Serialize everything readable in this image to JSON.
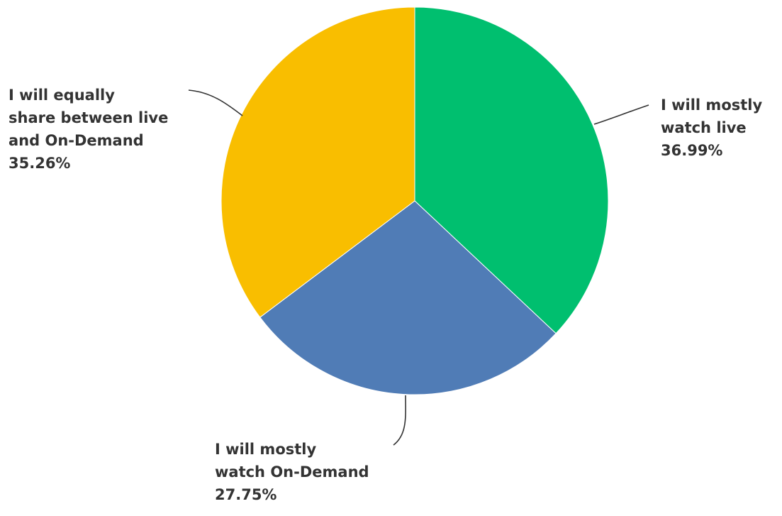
{
  "chart_data": {
    "type": "pie",
    "slices": [
      {
        "label_lines": [
          "I will mostly",
          "watch live"
        ],
        "value": 36.99,
        "value_text": "36.99%",
        "color": "#00bf6f"
      },
      {
        "label_lines": [
          "I will mostly",
          "watch On-Demand"
        ],
        "value": 27.75,
        "value_text": "27.75%",
        "color": "#507cb6"
      },
      {
        "label_lines": [
          "I will equally",
          "share between live",
          "and On-Demand"
        ],
        "value": 35.26,
        "value_text": "35.26%",
        "color": "#f9be00"
      }
    ],
    "start_angle_deg": 0,
    "direction": "clockwise",
    "legend": "none",
    "grid": false
  }
}
